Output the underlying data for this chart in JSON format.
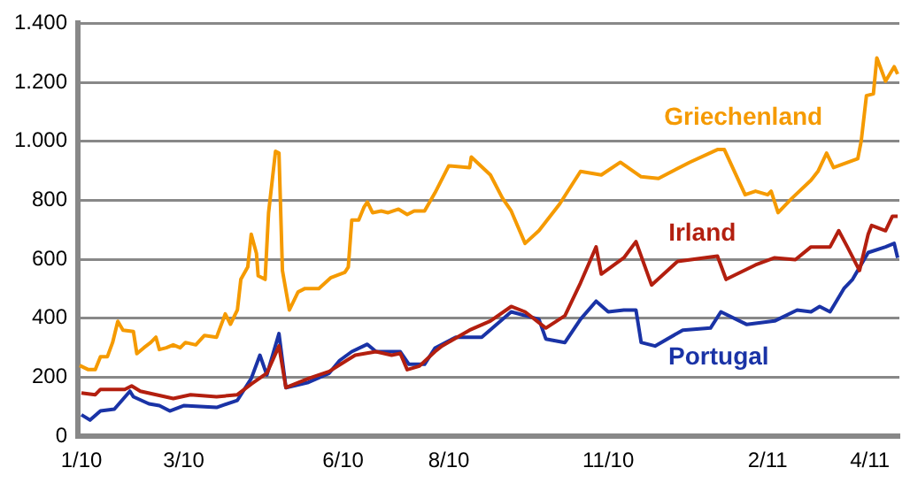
{
  "chart_data": {
    "type": "line",
    "xlim": [
      "2009-12-30",
      "2011-04-18"
    ],
    "ylim": [
      0,
      1400
    ],
    "xticks": [
      {
        "value": "2010-01-01",
        "label": "1/10"
      },
      {
        "value": "2010-03-01",
        "label": "3/10"
      },
      {
        "value": "2010-06-01",
        "label": "6/10"
      },
      {
        "value": "2010-08-01",
        "label": "8/10"
      },
      {
        "value": "2010-11-01",
        "label": "11/10"
      },
      {
        "value": "2011-02-01",
        "label": "2/11"
      },
      {
        "value": "2011-04-01",
        "label": "4/11"
      }
    ],
    "yticks": [
      0,
      200,
      400,
      600,
      800,
      {
        "value": 1000,
        "label": "1.000"
      },
      {
        "value": 1200,
        "label": "1.200"
      },
      {
        "value": 1400,
        "label": "1.400"
      }
    ],
    "grid": "y",
    "marker": "none",
    "line_style": "solid",
    "series": [
      {
        "name": "Griechenland",
        "color": "#f59a00",
        "x": [
          "2009-12-31",
          "2010-01-05",
          "2010-01-09",
          "2010-01-12",
          "2010-01-16",
          "2010-01-19",
          "2010-01-22",
          "2010-01-25",
          "2010-01-31",
          "2010-02-02",
          "2010-02-06",
          "2010-02-10",
          "2010-02-13",
          "2010-02-15",
          "2010-02-19",
          "2010-02-23",
          "2010-02-27",
          "2010-03-02",
          "2010-03-08",
          "2010-03-13",
          "2010-03-20",
          "2010-03-25",
          "2010-03-28",
          "2010-04-01",
          "2010-04-03",
          "2010-04-07",
          "2010-04-09",
          "2010-04-12",
          "2010-04-13",
          "2010-04-17",
          "2010-04-19",
          "2010-04-23",
          "2010-04-25",
          "2010-04-27",
          "2010-05-01",
          "2010-05-06",
          "2010-05-10",
          "2010-05-18",
          "2010-05-25",
          "2010-06-02",
          "2010-06-04",
          "2010-06-06",
          "2010-06-10",
          "2010-06-13",
          "2010-06-15",
          "2010-06-18",
          "2010-06-23",
          "2010-06-27",
          "2010-07-03",
          "2010-07-08",
          "2010-07-12",
          "2010-07-18",
          "2010-07-24",
          "2010-08-01",
          "2010-08-13",
          "2010-08-14",
          "2010-08-25",
          "2010-09-01",
          "2010-09-06",
          "2010-09-14",
          "2010-09-22",
          "2010-10-04",
          "2010-10-16",
          "2010-10-28",
          "2010-11-08",
          "2010-11-20",
          "2010-11-30",
          "2010-12-18",
          "2011-01-03",
          "2011-01-07",
          "2011-01-19",
          "2011-01-25",
          "2011-02-01",
          "2011-02-03",
          "2011-02-07",
          "2011-02-15",
          "2011-02-26",
          "2011-03-02",
          "2011-03-07",
          "2011-03-11",
          "2011-03-25",
          "2011-03-27",
          "2011-03-30",
          "2011-04-03",
          "2011-04-05",
          "2011-04-10",
          "2011-04-15",
          "2011-04-17"
        ],
        "values": [
          240,
          226,
          226,
          270,
          270,
          318,
          390,
          360,
          355,
          280,
          300,
          318,
          336,
          294,
          300,
          310,
          300,
          318,
          310,
          342,
          336,
          415,
          380,
          428,
          532,
          574,
          685,
          620,
          544,
          532,
          758,
          966,
          960,
          562,
          428,
          489,
          501,
          501,
          538,
          556,
          574,
          733,
          733,
          776,
          794,
          758,
          764,
          758,
          770,
          752,
          764,
          764,
          825,
          917,
          911,
          947,
          886,
          807,
          764,
          654,
          697,
          788,
          898,
          886,
          929,
          880,
          874,
          929,
          972,
          972,
          819,
          831,
          819,
          831,
          758,
          807,
          868,
          898,
          960,
          911,
          941,
          1002,
          1155,
          1161,
          1283,
          1204,
          1253,
          1228
        ]
      },
      {
        "name": "Irland",
        "color": "#b31f0f",
        "x": [
          "2010-01-01",
          "2010-01-09",
          "2010-01-12",
          "2010-01-26",
          "2010-01-30",
          "2010-02-04",
          "2010-02-23",
          "2010-03-05",
          "2010-03-20",
          "2010-04-01",
          "2010-04-09",
          "2010-04-18",
          "2010-04-25",
          "2010-04-29",
          "2010-05-12",
          "2010-05-24",
          "2010-06-03",
          "2010-06-08",
          "2010-06-20",
          "2010-06-29",
          "2010-07-04",
          "2010-07-08",
          "2010-07-15",
          "2010-07-24",
          "2010-07-28",
          "2010-08-13",
          "2010-08-25",
          "2010-09-06",
          "2010-09-14",
          "2010-09-26",
          "2010-10-07",
          "2010-10-16",
          "2010-10-25",
          "2010-10-28",
          "2010-11-10",
          "2010-11-17",
          "2010-11-26",
          "2010-12-11",
          "2011-01-03",
          "2011-01-08",
          "2011-01-25",
          "2011-02-05",
          "2011-02-17",
          "2011-02-26",
          "2011-03-09",
          "2011-03-14",
          "2011-03-19",
          "2011-03-26",
          "2011-03-31",
          "2011-04-02",
          "2011-04-10",
          "2011-04-14",
          "2011-04-17"
        ],
        "values": [
          147,
          141,
          159,
          159,
          171,
          153,
          128,
          141,
          134,
          141,
          177,
          214,
          306,
          165,
          196,
          220,
          257,
          275,
          287,
          275,
          281,
          226,
          238,
          287,
          306,
          360,
          391,
          440,
          422,
          367,
          409,
          520,
          642,
          550,
          605,
          660,
          513,
          593,
          611,
          532,
          581,
          605,
          599,
          642,
          642,
          697,
          642,
          562,
          685,
          715,
          697,
          746,
          746
        ]
      },
      {
        "name": "Portugal",
        "color": "#1a33a6",
        "x": [
          "2010-01-01",
          "2010-01-06",
          "2010-01-12",
          "2010-01-20",
          "2010-01-29",
          "2010-01-31",
          "2010-02-09",
          "2010-02-15",
          "2010-02-21",
          "2010-03-01",
          "2010-03-20",
          "2010-04-01",
          "2010-04-09",
          "2010-04-14",
          "2010-04-18",
          "2010-04-25",
          "2010-04-29",
          "2010-05-12",
          "2010-05-24",
          "2010-05-30",
          "2010-06-06",
          "2010-06-15",
          "2010-06-20",
          "2010-07-04",
          "2010-07-09",
          "2010-07-18",
          "2010-07-24",
          "2010-08-05",
          "2010-08-20",
          "2010-09-06",
          "2010-09-22",
          "2010-09-26",
          "2010-10-07",
          "2010-10-16",
          "2010-10-25",
          "2010-11-01",
          "2010-11-10",
          "2010-11-17",
          "2010-11-20",
          "2010-11-28",
          "2010-12-14",
          "2010-12-30",
          "2011-01-05",
          "2011-01-20",
          "2011-02-05",
          "2011-02-18",
          "2011-02-26",
          "2011-03-03",
          "2011-03-09",
          "2011-03-17",
          "2011-03-22",
          "2011-03-31",
          "2011-04-10",
          "2011-04-15",
          "2011-04-17"
        ],
        "values": [
          73,
          55,
          86,
          92,
          153,
          134,
          110,
          104,
          86,
          104,
          98,
          122,
          196,
          275,
          208,
          348,
          165,
          183,
          214,
          257,
          287,
          312,
          287,
          287,
          244,
          244,
          299,
          336,
          336,
          422,
          397,
          330,
          318,
          397,
          458,
          422,
          428,
          428,
          318,
          306,
          360,
          367,
          422,
          379,
          391,
          428,
          422,
          440,
          422,
          501,
          532,
          623,
          642,
          654,
          605
        ]
      }
    ]
  }
}
